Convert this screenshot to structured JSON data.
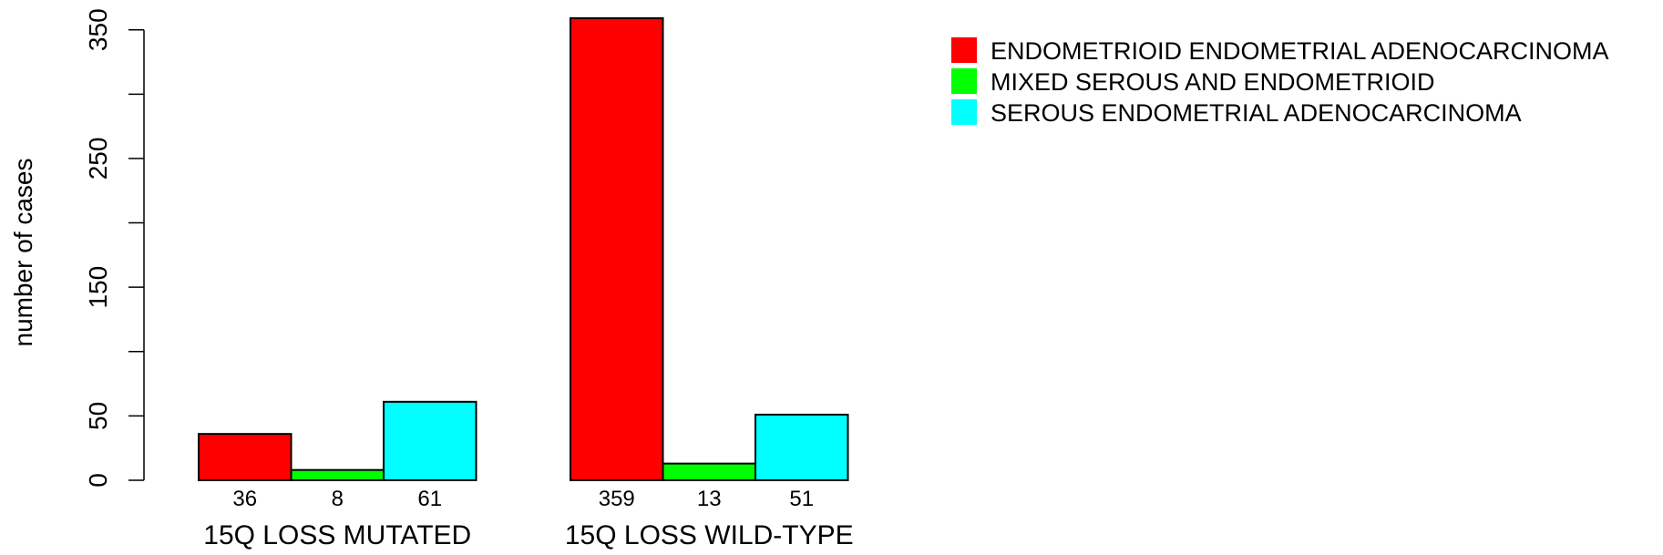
{
  "chart_data": {
    "type": "bar",
    "ylabel": "number of cases",
    "ylim": [
      0,
      359
    ],
    "yticks": [
      0,
      50,
      150,
      250,
      350
    ],
    "y_minor_ticks": [
      100,
      200,
      300
    ],
    "grid": false,
    "legend_position": "top-right",
    "categories": [
      "15Q LOSS MUTATED",
      "15Q LOSS WILD-TYPE"
    ],
    "series": [
      {
        "name": "ENDOMETRIOID ENDOMETRIAL ADENOCARCINOMA",
        "color": "#ff0000",
        "values": [
          36,
          359
        ]
      },
      {
        "name": "MIXED SEROUS AND ENDOMETRIOID",
        "color": "#00ff00",
        "values": [
          8,
          13
        ]
      },
      {
        "name": "SEROUS ENDOMETRIAL ADENOCARCINOMA",
        "color": "#00ffff",
        "values": [
          61,
          51
        ]
      }
    ]
  }
}
